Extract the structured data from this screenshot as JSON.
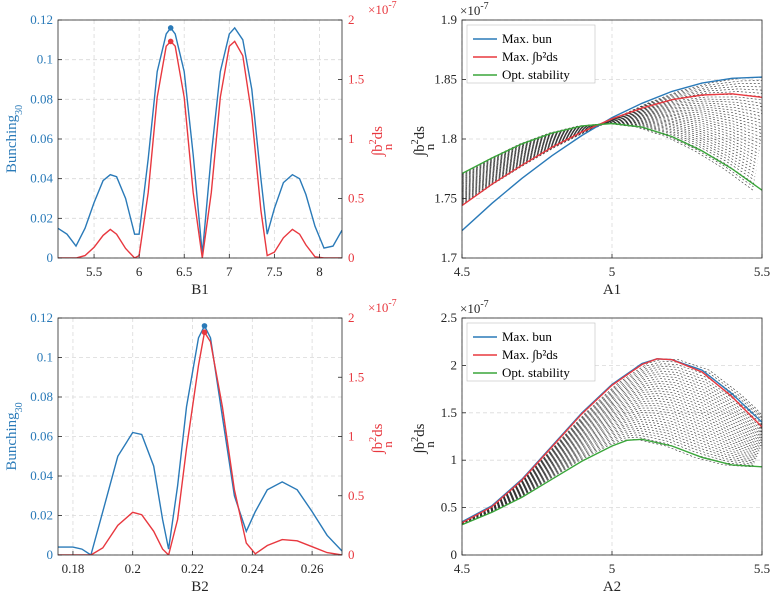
{
  "colors": {
    "blue": "#2a7ab8",
    "red": "#e8383f",
    "green": "#3aa63a",
    "black": "#000000",
    "axis": "#262626"
  },
  "chart_data": [
    {
      "type": "line",
      "id": "p1",
      "xlabel": "B1",
      "ylabel_left": "Bunching",
      "ylabel_left_sub": "30",
      "ylabel_right": "∫b",
      "ylabel_right_sup": "2",
      "ylabel_right_sub": "n",
      "ylabel_right_tail": "ds",
      "exponent_label": "×10",
      "exponent_power": "-7",
      "xlim": [
        5.1,
        8.25
      ],
      "ylim_left": [
        0,
        0.12
      ],
      "ylim_right": [
        0,
        2
      ],
      "xticks": [
        "5.5",
        "6",
        "6.5",
        "7",
        "7.5",
        "8"
      ],
      "xtick_values": [
        5.5,
        6,
        6.5,
        7,
        7.5,
        8
      ],
      "yticks_left": [
        "0",
        "0.02",
        "0.04",
        "0.06",
        "0.08",
        "0.1",
        "0.12"
      ],
      "ytick_values_left": [
        0,
        0.02,
        0.04,
        0.06,
        0.08,
        0.1,
        0.12
      ],
      "yticks_right": [
        "0",
        "0.5",
        "1",
        "1.5",
        "2"
      ],
      "ytick_values_right": [
        0,
        0.5,
        1,
        1.5,
        2
      ],
      "series": [
        {
          "axis": "left",
          "color": "#2a7ab8",
          "x": [
            5.1,
            5.2,
            5.3,
            5.4,
            5.5,
            5.6,
            5.68,
            5.75,
            5.85,
            5.95,
            6.0,
            6.1,
            6.2,
            6.3,
            6.35,
            6.4,
            6.5,
            6.6,
            6.7,
            6.8,
            6.9,
            7.0,
            7.06,
            7.15,
            7.25,
            7.35,
            7.42,
            7.5,
            7.6,
            7.7,
            7.78,
            7.85,
            7.95,
            8.05,
            8.15,
            8.25
          ],
          "y": [
            0.015,
            0.012,
            0.006,
            0.015,
            0.028,
            0.039,
            0.042,
            0.041,
            0.03,
            0.012,
            0.012,
            0.05,
            0.094,
            0.113,
            0.116,
            0.113,
            0.094,
            0.052,
            0.002,
            0.052,
            0.094,
            0.113,
            0.116,
            0.11,
            0.085,
            0.04,
            0.012,
            0.025,
            0.038,
            0.042,
            0.04,
            0.032,
            0.016,
            0.005,
            0.006,
            0.014
          ]
        },
        {
          "axis": "right",
          "color": "#e8383f",
          "x": [
            5.1,
            5.2,
            5.3,
            5.4,
            5.5,
            5.6,
            5.68,
            5.75,
            5.85,
            5.95,
            6.0,
            6.1,
            6.2,
            6.3,
            6.35,
            6.4,
            6.5,
            6.6,
            6.7,
            6.8,
            6.9,
            7.0,
            7.06,
            7.15,
            7.25,
            7.35,
            7.42,
            7.5,
            7.6,
            7.7,
            7.78,
            7.85,
            7.95,
            8.05,
            8.15,
            8.25
          ],
          "y": [
            0,
            0.0,
            0.0,
            0.02,
            0.09,
            0.19,
            0.24,
            0.2,
            0.08,
            0.0,
            0.02,
            0.55,
            1.35,
            1.78,
            1.82,
            1.78,
            1.35,
            0.55,
            0.0,
            0.55,
            1.35,
            1.78,
            1.82,
            1.7,
            1.2,
            0.4,
            0.02,
            0.05,
            0.17,
            0.24,
            0.2,
            0.11,
            0.01,
            0.0,
            0.0,
            0.0
          ]
        }
      ],
      "markers": [
        {
          "axis": "left",
          "x": 6.35,
          "y": 0.116,
          "color": "#2a7ab8"
        },
        {
          "axis": "right",
          "x": 6.35,
          "y": 1.82,
          "color": "#e8383f"
        }
      ]
    },
    {
      "type": "line",
      "id": "p2",
      "xlabel": "A1",
      "ylabel_left": "∫b",
      "ylabel_left_sup": "2",
      "ylabel_left_sub": "n",
      "ylabel_left_tail": "ds",
      "exponent_label": "×10",
      "exponent_power": "-7",
      "xlim": [
        4.5,
        5.5
      ],
      "ylim_left": [
        1.7,
        1.9
      ],
      "xticks": [
        "4.5",
        "5",
        "5.5"
      ],
      "xtick_values": [
        4.5,
        5,
        5.5
      ],
      "yticks_left": [
        "1.7",
        "1.75",
        "1.8",
        "1.85",
        "1.9"
      ],
      "ytick_values_left": [
        1.7,
        1.75,
        1.8,
        1.85,
        1.9
      ],
      "legend": {
        "placement": "top-left",
        "entries": [
          "Max. bun",
          "Max. ∫b²ds",
          "Opt. stability"
        ]
      },
      "series": [
        {
          "name": "Max. bun",
          "color": "#2a7ab8",
          "x": [
            4.5,
            4.6,
            4.7,
            4.8,
            4.9,
            5.0,
            5.1,
            5.2,
            5.3,
            5.4,
            5.5
          ],
          "y": [
            1.723,
            1.746,
            1.767,
            1.786,
            1.803,
            1.818,
            1.83,
            1.84,
            1.847,
            1.851,
            1.852
          ]
        },
        {
          "name": "Max. ∫b²ds",
          "color": "#e8383f",
          "x": [
            4.5,
            4.6,
            4.7,
            4.8,
            4.9,
            5.0,
            5.1,
            5.2,
            5.3,
            5.4,
            5.5
          ],
          "y": [
            1.744,
            1.762,
            1.778,
            1.793,
            1.806,
            1.817,
            1.826,
            1.833,
            1.837,
            1.838,
            1.835
          ]
        },
        {
          "name": "Opt. stability",
          "color": "#3aa63a",
          "x": [
            4.5,
            4.6,
            4.7,
            4.8,
            4.9,
            5.0,
            5.1,
            5.2,
            5.3,
            5.4,
            5.5
          ],
          "y": [
            1.771,
            1.784,
            1.796,
            1.805,
            1.811,
            1.813,
            1.81,
            1.802,
            1.79,
            1.775,
            1.757
          ]
        }
      ]
    },
    {
      "type": "line",
      "id": "p3",
      "xlabel": "B2",
      "ylabel_left": "Bunching",
      "ylabel_left_sub": "30",
      "ylabel_right": "∫b",
      "ylabel_right_sup": "2",
      "ylabel_right_sub": "n",
      "ylabel_right_tail": "ds",
      "exponent_label": "×10",
      "exponent_power": "-7",
      "xlim": [
        0.175,
        0.27
      ],
      "ylim_left": [
        0,
        0.12
      ],
      "ylim_right": [
        0,
        2
      ],
      "xticks": [
        "0.18",
        "0.2",
        "0.22",
        "0.24",
        "0.26"
      ],
      "xtick_values": [
        0.18,
        0.2,
        0.22,
        0.24,
        0.26
      ],
      "yticks_left": [
        "0",
        "0.02",
        "0.04",
        "0.06",
        "0.08",
        "0.1",
        "0.12"
      ],
      "ytick_values_left": [
        0,
        0.02,
        0.04,
        0.06,
        0.08,
        0.1,
        0.12
      ],
      "yticks_right": [
        "0",
        "0.5",
        "1",
        "1.5",
        "2"
      ],
      "ytick_values_right": [
        0,
        0.5,
        1,
        1.5,
        2
      ],
      "series": [
        {
          "axis": "left",
          "color": "#2a7ab8",
          "x": [
            0.175,
            0.18,
            0.183,
            0.186,
            0.19,
            0.195,
            0.2,
            0.203,
            0.207,
            0.21,
            0.212,
            0.215,
            0.218,
            0.222,
            0.224,
            0.226,
            0.23,
            0.234,
            0.238,
            0.241,
            0.245,
            0.25,
            0.255,
            0.26,
            0.265,
            0.27
          ],
          "y": [
            0.004,
            0.004,
            0.003,
            0.0,
            0.022,
            0.05,
            0.062,
            0.061,
            0.045,
            0.018,
            0.003,
            0.035,
            0.075,
            0.11,
            0.116,
            0.11,
            0.07,
            0.03,
            0.012,
            0.022,
            0.033,
            0.037,
            0.033,
            0.022,
            0.01,
            0.002
          ]
        },
        {
          "axis": "right",
          "color": "#e8383f",
          "x": [
            0.175,
            0.18,
            0.183,
            0.186,
            0.19,
            0.195,
            0.2,
            0.203,
            0.207,
            0.21,
            0.212,
            0.215,
            0.218,
            0.222,
            0.224,
            0.226,
            0.23,
            0.234,
            0.238,
            0.241,
            0.245,
            0.25,
            0.255,
            0.26,
            0.265,
            0.27
          ],
          "y": [
            0,
            0,
            0,
            0.0,
            0.06,
            0.25,
            0.36,
            0.34,
            0.2,
            0.05,
            0.0,
            0.3,
            0.9,
            1.6,
            1.88,
            1.8,
            1.25,
            0.55,
            0.1,
            0.01,
            0.08,
            0.13,
            0.12,
            0.07,
            0.02,
            0.0
          ]
        }
      ],
      "markers": [
        {
          "axis": "left",
          "x": 0.224,
          "y": 0.116,
          "color": "#2a7ab8"
        },
        {
          "axis": "right",
          "x": 0.224,
          "y": 1.88,
          "color": "#e8383f"
        }
      ]
    },
    {
      "type": "line",
      "id": "p4",
      "xlabel": "A2",
      "ylabel_left": "∫b",
      "ylabel_left_sup": "2",
      "ylabel_left_sub": "n",
      "ylabel_left_tail": "ds",
      "exponent_label": "×10",
      "exponent_power": "-7",
      "xlim": [
        4.5,
        5.5
      ],
      "ylim_left": [
        0,
        2.5
      ],
      "xticks": [
        "4.5",
        "5",
        "5.5"
      ],
      "xtick_values": [
        4.5,
        5,
        5.5
      ],
      "yticks_left": [
        "0",
        "0.5",
        "1",
        "1.5",
        "2",
        "2.5"
      ],
      "ytick_values_left": [
        0,
        0.5,
        1,
        1.5,
        2,
        2.5
      ],
      "legend": {
        "placement": "top-left",
        "entries": [
          "Max. bun",
          "Max. ∫b²ds",
          "Opt. stability"
        ]
      },
      "series": [
        {
          "name": "Max. bun",
          "color": "#2a7ab8",
          "x": [
            4.5,
            4.6,
            4.7,
            4.8,
            4.9,
            5.0,
            5.1,
            5.15,
            5.2,
            5.3,
            5.4,
            5.5
          ],
          "y": [
            0.35,
            0.52,
            0.8,
            1.15,
            1.5,
            1.8,
            2.02,
            2.07,
            2.06,
            1.95,
            1.7,
            1.4
          ]
        },
        {
          "name": "Max. ∫b²ds",
          "color": "#e8383f",
          "x": [
            4.5,
            4.6,
            4.7,
            4.8,
            4.9,
            5.0,
            5.1,
            5.15,
            5.2,
            5.3,
            5.4,
            5.5
          ],
          "y": [
            0.34,
            0.51,
            0.79,
            1.14,
            1.49,
            1.79,
            2.01,
            2.07,
            2.06,
            1.93,
            1.67,
            1.35
          ]
        },
        {
          "name": "Opt. stability",
          "color": "#3aa63a",
          "x": [
            4.5,
            4.6,
            4.7,
            4.8,
            4.9,
            5.0,
            5.05,
            5.1,
            5.2,
            5.3,
            5.4,
            5.5
          ],
          "y": [
            0.32,
            0.45,
            0.61,
            0.8,
            0.99,
            1.15,
            1.21,
            1.22,
            1.15,
            1.03,
            0.95,
            0.93
          ]
        }
      ]
    }
  ]
}
